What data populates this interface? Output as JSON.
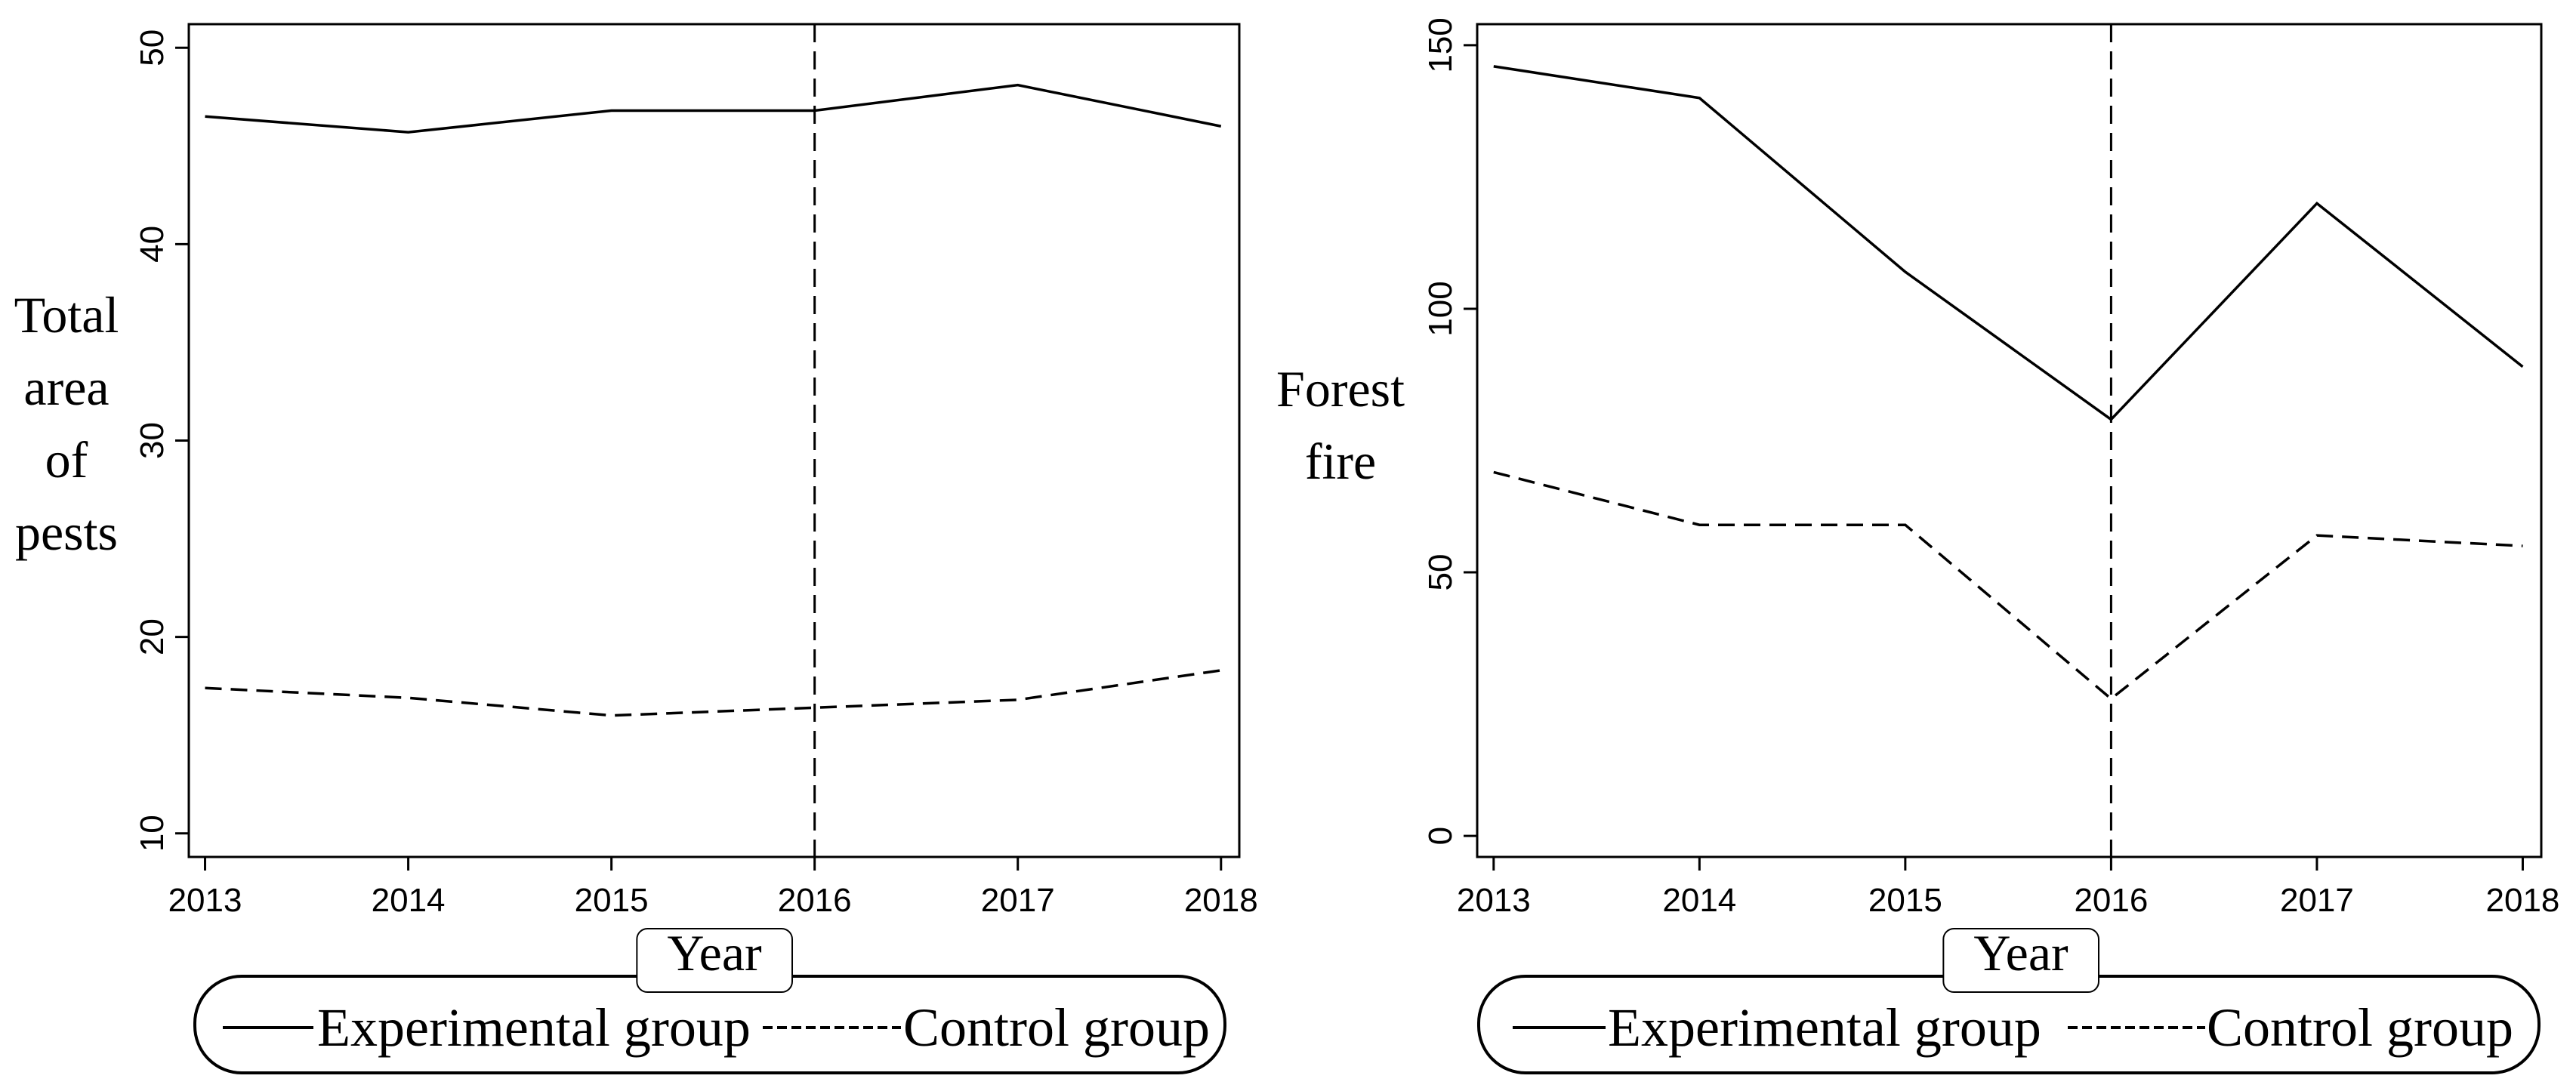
{
  "chart_data": [
    {
      "type": "line",
      "title": "",
      "xlabel": "Year",
      "ylabel_lines": [
        "Total",
        "area",
        "of",
        "pests"
      ],
      "categories": [
        "2013",
        "2014",
        "2015",
        "2016",
        "2017",
        "2018"
      ],
      "x": [
        2013,
        2014,
        2015,
        2016,
        2017,
        2018
      ],
      "series": [
        {
          "name": "Experimental group",
          "style": "solid",
          "values": [
            46.5,
            45.7,
            46.8,
            46.8,
            48.1,
            46.0
          ]
        },
        {
          "name": "Control group",
          "style": "dashed",
          "values": [
            17.4,
            16.9,
            16.0,
            16.4,
            16.8,
            18.3
          ]
        }
      ],
      "xlim": [
        2012.92,
        2018.09
      ],
      "ylim": [
        8.8,
        51.2
      ],
      "yticks": [
        10,
        20,
        30,
        40,
        50
      ],
      "ytick_labels": [
        "10",
        "20",
        "30",
        "40",
        "50"
      ],
      "vline_x": 2016,
      "vline_style": "dashed",
      "legend_labels": [
        "Experimental group",
        "Control group"
      ],
      "legend_position": "bottom",
      "grid": false
    },
    {
      "type": "line",
      "title": "",
      "xlabel": "Year",
      "ylabel_lines": [
        "Forest",
        "fire"
      ],
      "categories": [
        "2013",
        "2014",
        "2015",
        "2016",
        "2017",
        "2018"
      ],
      "x": [
        2013,
        2014,
        2015,
        2016,
        2017,
        2018
      ],
      "series": [
        {
          "name": "Experimental group",
          "style": "solid",
          "values": [
            146,
            140,
            107,
            79,
            120,
            89
          ]
        },
        {
          "name": "Control group",
          "style": "dashed",
          "values": [
            69,
            59,
            59,
            26,
            57,
            55
          ]
        }
      ],
      "xlim": [
        2012.92,
        2018.09
      ],
      "ylim": [
        -4,
        154
      ],
      "yticks": [
        0,
        50,
        100,
        150
      ],
      "ytick_labels": [
        "0",
        "50",
        "100",
        "150"
      ],
      "vline_x": 2016,
      "vline_style": "dashed",
      "legend_labels": [
        "Experimental  group",
        "Control group"
      ],
      "legend_position": "bottom",
      "grid": false
    }
  ]
}
